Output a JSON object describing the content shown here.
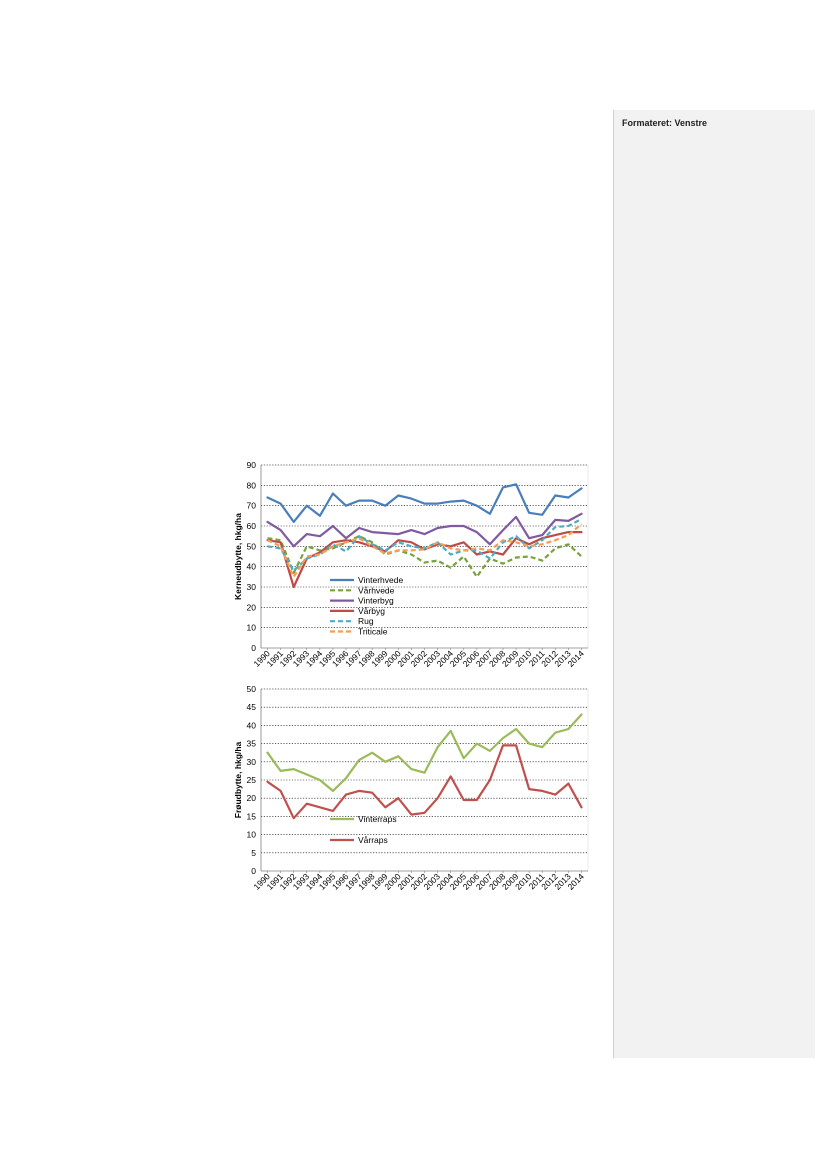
{
  "comment": {
    "label": "Formateret: Venstre"
  },
  "chart_data": [
    {
      "type": "line",
      "ylabel": "Kerneudbytte, hkg/ha",
      "ylim": [
        0,
        90
      ],
      "yticks": [
        0,
        10,
        20,
        30,
        40,
        50,
        60,
        70,
        80,
        90
      ],
      "grid": "dotted",
      "legend": "lower-left",
      "categories": [
        "1990",
        "1991",
        "1992",
        "1993",
        "1994",
        "1995",
        "1996",
        "1997",
        "1998",
        "1999",
        "2000",
        "2001",
        "2002",
        "2003",
        "2004",
        "2005",
        "2006",
        "2007",
        "2008",
        "2009",
        "2010",
        "2011",
        "2012",
        "2013",
        "2014"
      ],
      "series": [
        {
          "name": "Vinterhvede",
          "color": "#4a7ebb",
          "dash": "solid",
          "values": [
            74,
            71,
            62,
            70,
            65,
            76,
            70,
            72.5,
            72.5,
            70,
            75,
            73.5,
            71,
            71,
            72,
            72.5,
            70,
            66,
            79,
            80.5,
            66.5,
            65.5,
            75,
            74,
            78.5
          ]
        },
        {
          "name": "Vårhvede",
          "color": "#77a33a",
          "dash": "dashed",
          "values": [
            54,
            53,
            37,
            50,
            48,
            49,
            52,
            55,
            52,
            46,
            48,
            46,
            42,
            43,
            39.5,
            45,
            35,
            44,
            41.5,
            44.5,
            45,
            43,
            49,
            51,
            45
          ]
        },
        {
          "name": "Vinterbyg",
          "color": "#7f5aa2",
          "dash": "solid",
          "values": [
            62,
            58,
            50,
            56,
            55,
            60,
            54,
            59,
            57,
            56.5,
            56,
            58,
            56,
            59,
            60,
            60,
            57,
            51,
            58,
            64.5,
            54,
            55.5,
            63,
            62.5,
            66
          ]
        },
        {
          "name": "Vårbyg",
          "color": "#be4b48",
          "dash": "solid",
          "values": [
            53,
            52,
            30,
            44,
            47,
            52,
            53,
            52,
            50,
            47.5,
            53,
            52,
            48.5,
            51,
            50,
            52,
            46,
            47.5,
            46,
            54,
            51,
            54,
            55.5,
            57,
            57
          ]
        },
        {
          "name": "Rug",
          "color": "#4aacc5",
          "dash": "dashed",
          "values": [
            50,
            49,
            38,
            44,
            46,
            51,
            47.5,
            55,
            51,
            48,
            52,
            50,
            49,
            52,
            46,
            48,
            48,
            44,
            52,
            55,
            49,
            53,
            59.5,
            60,
            63.5
          ]
        },
        {
          "name": "Triticale",
          "color": "#f59d56",
          "dash": "dashed",
          "values": [
            53,
            50,
            35,
            45,
            46,
            50,
            52,
            54,
            50,
            46.5,
            48,
            48,
            48.5,
            52,
            49,
            48,
            49,
            48,
            53,
            52,
            50,
            51,
            53,
            55.5,
            61
          ]
        }
      ]
    },
    {
      "type": "line",
      "ylabel": "Frøudbytte, hkg/ha",
      "ylim": [
        0,
        50
      ],
      "yticks": [
        0,
        5,
        10,
        15,
        20,
        25,
        30,
        35,
        40,
        45,
        50
      ],
      "grid": "dotted",
      "legend": "lower-left",
      "categories": [
        "1990",
        "1991",
        "1992",
        "1993",
        "1994",
        "1995",
        "1996",
        "1997",
        "1998",
        "1999",
        "2000",
        "2001",
        "2002",
        "2003",
        "2004",
        "2005",
        "2006",
        "2007",
        "2008",
        "2009",
        "2010",
        "2011",
        "2012",
        "2013",
        "2014"
      ],
      "series": [
        {
          "name": "Vinterraps",
          "color": "#9bbb59",
          "dash": "solid",
          "values": [
            32.5,
            27.5,
            28,
            26.5,
            25,
            22,
            25.5,
            30.5,
            32.5,
            30,
            31.5,
            28,
            27,
            34,
            38.5,
            31,
            35,
            33,
            36.5,
            39,
            35,
            34,
            38,
            39,
            43
          ]
        },
        {
          "name": "Vårraps",
          "color": "#c0504d",
          "dash": "solid",
          "values": [
            24.5,
            22,
            14.5,
            18.5,
            17.5,
            16.5,
            21,
            22,
            21.5,
            17.5,
            20,
            15.5,
            16,
            20,
            26,
            19.5,
            19.5,
            25,
            34.5,
            34.5,
            22.5,
            22,
            21,
            24,
            17.5
          ]
        }
      ]
    }
  ]
}
